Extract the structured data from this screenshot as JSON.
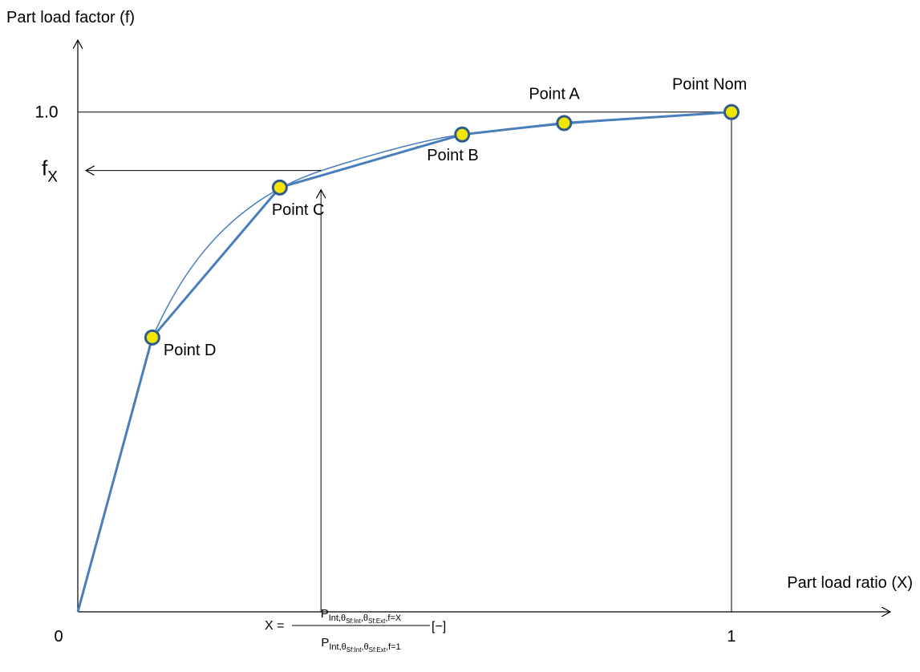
{
  "chart_data": {
    "type": "line",
    "x_label": "Part load ratio (X)",
    "y_label": "Part load factor (f)",
    "xlim": [
      0,
      1.243
    ],
    "ylim": [
      0,
      1.144
    ],
    "xticks": [
      0,
      1
    ],
    "yticks": [
      {
        "value": 1,
        "label": "1.0"
      }
    ],
    "x": [
      0,
      0.114,
      0.309,
      0.588,
      0.744,
      1
    ],
    "series": [
      {
        "color": "#4a7ebb",
        "values": [
          0,
          0.549,
          0.849,
          0.955,
          0.978,
          1
        ]
      }
    ],
    "point_labels": [
      null,
      "Point D",
      "Point C",
      "Point B",
      "Point A",
      "Point Nom"
    ],
    "marker_color": "#f2e600",
    "f_x": {
      "x": 0.372,
      "y": 0.883,
      "label": "f",
      "sub": "X"
    },
    "formula": {
      "lhs": "X =",
      "num": [
        "P",
        "Int,θ",
        "Sf:Int",
        ",θ",
        "Sf:Ext",
        ",f=X"
      ],
      "den": [
        "P",
        "Int,θ",
        "Sf:Int",
        ",θ",
        "Sf:Ext",
        ",f=1"
      ],
      "unit": "[−]"
    }
  }
}
